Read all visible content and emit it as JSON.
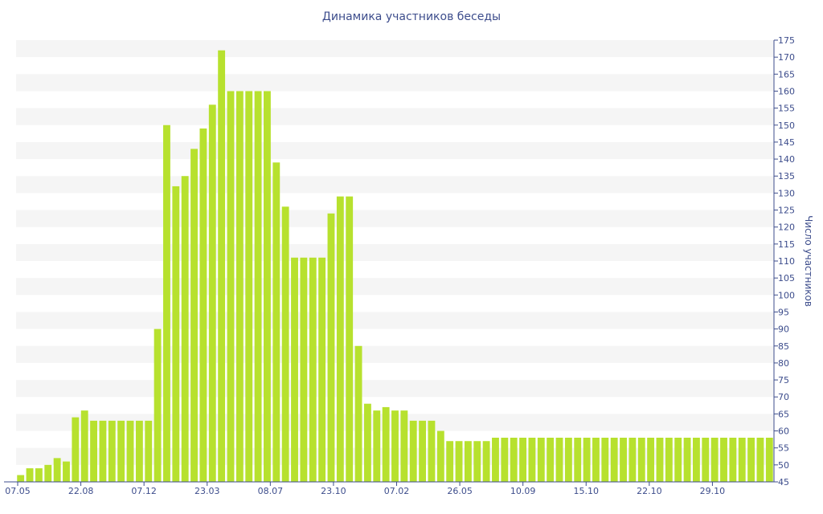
{
  "chart_data": {
    "type": "bar",
    "title": "Динамика участников беседы",
    "ylabel": "Число участников",
    "xlabel": "",
    "ylim": [
      45,
      175
    ],
    "y_ticks": [
      45,
      50,
      55,
      60,
      65,
      70,
      75,
      80,
      85,
      90,
      95,
      100,
      105,
      110,
      115,
      120,
      125,
      130,
      135,
      140,
      145,
      150,
      155,
      160,
      165,
      170,
      175
    ],
    "x_tick_labels": [
      "07.05",
      "22.08",
      "07.12",
      "23.03",
      "08.07",
      "23.10",
      "07.02",
      "26.05",
      "10.09",
      "15.10",
      "22.10",
      "29.10"
    ],
    "y_axis_position": "right",
    "grid": "horizontal alternating bands",
    "bar_color": "#b7e12e",
    "band_color": "#f5f5f5",
    "text_color": "#3d4d8c",
    "values": [
      47,
      49,
      49,
      50,
      52,
      51,
      64,
      66,
      63,
      63,
      63,
      63,
      63,
      63,
      63,
      90,
      150,
      132,
      135,
      143,
      149,
      156,
      172,
      160,
      160,
      160,
      160,
      160,
      139,
      126,
      111,
      111,
      111,
      111,
      124,
      129,
      129,
      85,
      68,
      66,
      67,
      66,
      66,
      63,
      63,
      63,
      60,
      57,
      57,
      57,
      57,
      57,
      58,
      58,
      58,
      58,
      58,
      58,
      58,
      58,
      58,
      58,
      58,
      58,
      58,
      58,
      58,
      58,
      58,
      58,
      58,
      58,
      58,
      58,
      58,
      58,
      58,
      58,
      58,
      58,
      58,
      58,
      58
    ]
  }
}
